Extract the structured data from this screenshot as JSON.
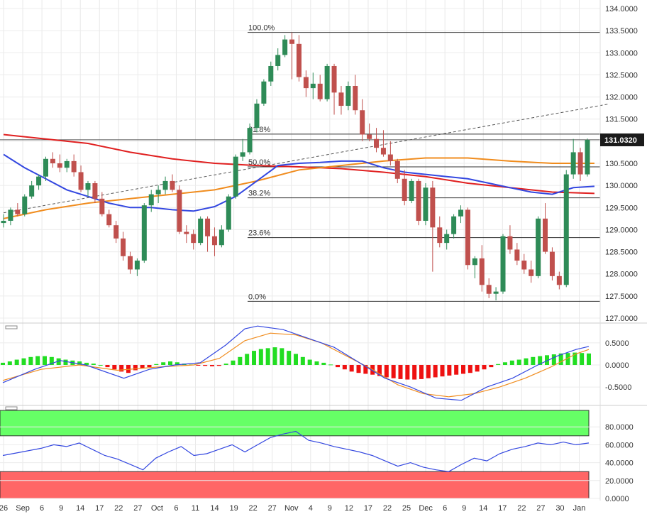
{
  "chart_data": [
    {
      "panel": "price",
      "type": "candlestick",
      "y_ticks": [
        "134.0000",
        "133.5000",
        "133.0000",
        "132.5000",
        "132.0000",
        "131.5000",
        "131.0000",
        "130.5000",
        "130.0000",
        "129.5000",
        "129.0000",
        "128.5000",
        "128.0000",
        "127.5000",
        "127.0000"
      ],
      "ylim": [
        127.0,
        134.0
      ],
      "last_price_label": "131.0320",
      "last_price": 131.032,
      "colors": {
        "up": "#2e8b57",
        "down": "#c0504d",
        "sma_fast": "#3347e0",
        "sma_mid": "#f08c1e",
        "sma_slow": "#e02020",
        "fib": "#333333",
        "tag": "#1b1b1b"
      },
      "fibonacci": [
        {
          "label": "100.0%",
          "value": 133.46
        },
        {
          "label": "61.8%",
          "value": 131.16
        },
        {
          "label": "50.0%",
          "value": 130.42
        },
        {
          "label": "38.2%",
          "value": 129.72
        },
        {
          "label": "23.6%",
          "value": 128.82
        },
        {
          "label": "0.0%",
          "value": 127.38
        }
      ],
      "trendline": [
        {
          "i": 0,
          "v": 129.38
        },
        {
          "i": 84,
          "v": 131.84
        }
      ],
      "candles": [
        [
          129.15,
          129.35,
          129.05,
          129.2
        ],
        [
          129.2,
          129.5,
          129.1,
          129.45
        ],
        [
          129.45,
          129.6,
          129.3,
          129.35
        ],
        [
          129.35,
          129.8,
          129.3,
          129.75
        ],
        [
          129.75,
          130.1,
          129.7,
          130.0
        ],
        [
          130.0,
          130.25,
          129.9,
          130.2
        ],
        [
          130.2,
          130.65,
          130.1,
          130.6
        ],
        [
          130.6,
          130.75,
          130.4,
          130.5
        ],
        [
          130.5,
          130.7,
          130.3,
          130.4
        ],
        [
          130.4,
          130.6,
          130.3,
          130.55
        ],
        [
          130.55,
          130.7,
          130.2,
          130.3
        ],
        [
          130.3,
          130.45,
          129.85,
          129.9
        ],
        [
          129.9,
          130.1,
          129.75,
          130.05
        ],
        [
          130.05,
          130.1,
          129.6,
          129.7
        ],
        [
          129.7,
          129.85,
          129.3,
          129.35
        ],
        [
          129.35,
          129.45,
          129.05,
          129.1
        ],
        [
          129.1,
          129.2,
          128.7,
          128.8
        ],
        [
          128.8,
          128.95,
          128.3,
          128.4
        ],
        [
          128.4,
          128.5,
          128.0,
          128.1
        ],
        [
          128.1,
          128.35,
          127.95,
          128.3
        ],
        [
          128.3,
          129.6,
          128.25,
          129.55
        ],
        [
          129.55,
          129.9,
          129.4,
          129.8
        ],
        [
          129.8,
          130.0,
          129.6,
          129.9
        ],
        [
          129.9,
          130.2,
          129.8,
          130.1
        ],
        [
          130.1,
          130.25,
          129.85,
          129.9
        ],
        [
          129.9,
          130.0,
          128.9,
          128.95
        ],
        [
          128.95,
          129.1,
          128.7,
          128.9
        ],
        [
          128.9,
          129.0,
          128.55,
          128.7
        ],
        [
          128.7,
          129.3,
          128.65,
          129.25
        ],
        [
          129.25,
          129.3,
          128.5,
          128.85
        ],
        [
          128.85,
          129.05,
          128.4,
          128.65
        ],
        [
          128.65,
          129.1,
          128.6,
          129.0
        ],
        [
          129.0,
          129.8,
          128.95,
          129.75
        ],
        [
          129.75,
          130.7,
          129.7,
          130.65
        ],
        [
          130.65,
          131.05,
          130.55,
          130.75
        ],
        [
          130.75,
          131.4,
          130.7,
          131.3
        ],
        [
          131.3,
          131.95,
          131.2,
          131.85
        ],
        [
          131.85,
          132.4,
          131.8,
          132.35
        ],
        [
          132.35,
          132.8,
          132.25,
          132.7
        ],
        [
          132.7,
          133.1,
          132.6,
          132.95
        ],
        [
          132.95,
          133.4,
          132.9,
          133.3
        ],
        [
          133.3,
          133.46,
          132.4,
          133.2
        ],
        [
          133.2,
          133.4,
          132.35,
          132.45
        ],
        [
          132.45,
          132.6,
          132.0,
          132.2
        ],
        [
          132.2,
          132.55,
          131.95,
          132.3
        ],
        [
          132.3,
          132.5,
          131.9,
          131.95
        ],
        [
          131.95,
          132.75,
          131.9,
          132.7
        ],
        [
          132.7,
          132.75,
          131.6,
          132.1
        ],
        [
          132.1,
          132.25,
          131.6,
          131.8
        ],
        [
          131.8,
          132.35,
          131.7,
          132.25
        ],
        [
          132.25,
          132.5,
          131.6,
          131.7
        ],
        [
          131.7,
          131.95,
          131.0,
          131.15
        ],
        [
          131.15,
          131.4,
          131.0,
          131.05
        ],
        [
          131.05,
          131.3,
          130.75,
          130.85
        ],
        [
          130.85,
          131.25,
          130.65,
          130.7
        ],
        [
          130.7,
          131.0,
          130.45,
          130.55
        ],
        [
          130.55,
          130.6,
          130.05,
          130.15
        ],
        [
          130.15,
          130.35,
          129.55,
          129.65
        ],
        [
          129.65,
          130.15,
          129.6,
          130.1
        ],
        [
          130.1,
          130.15,
          129.1,
          129.2
        ],
        [
          129.2,
          130.05,
          129.1,
          129.95
        ],
        [
          129.95,
          130.1,
          128.05,
          129.05
        ],
        [
          129.05,
          129.3,
          128.6,
          128.7
        ],
        [
          128.7,
          129.0,
          128.55,
          128.9
        ],
        [
          128.9,
          129.35,
          128.8,
          129.3
        ],
        [
          129.3,
          129.55,
          129.15,
          129.45
        ],
        [
          129.45,
          129.5,
          128.1,
          128.2
        ],
        [
          128.2,
          128.4,
          127.9,
          128.35
        ],
        [
          128.35,
          128.65,
          127.6,
          127.75
        ],
        [
          127.75,
          127.9,
          127.45,
          127.55
        ],
        [
          127.55,
          127.7,
          127.4,
          127.6
        ],
        [
          127.6,
          128.9,
          127.55,
          128.85
        ],
        [
          128.85,
          129.1,
          128.45,
          128.55
        ],
        [
          128.55,
          128.7,
          128.2,
          128.3
        ],
        [
          128.3,
          128.45,
          128.0,
          128.1
        ],
        [
          128.1,
          128.3,
          127.8,
          127.95
        ],
        [
          127.95,
          129.3,
          127.9,
          129.25
        ],
        [
          129.25,
          129.6,
          128.45,
          128.5
        ],
        [
          128.5,
          128.6,
          127.85,
          127.95
        ],
        [
          127.95,
          128.05,
          127.65,
          127.75
        ],
        [
          127.75,
          130.35,
          127.7,
          130.25
        ],
        [
          130.25,
          131.05,
          130.15,
          130.75
        ],
        [
          130.75,
          130.85,
          130.1,
          130.25
        ],
        [
          130.25,
          131.06,
          130.2,
          131.03
        ]
      ],
      "sma_fast": [
        [
          0,
          130.7
        ],
        [
          3,
          130.4
        ],
        [
          6,
          130.15
        ],
        [
          9,
          129.9
        ],
        [
          12,
          129.75
        ],
        [
          15,
          129.6
        ],
        [
          18,
          129.5
        ],
        [
          21,
          129.5
        ],
        [
          24,
          129.45
        ],
        [
          27,
          129.42
        ],
        [
          30,
          129.52
        ],
        [
          33,
          129.75
        ],
        [
          36,
          130.1
        ],
        [
          39,
          130.45
        ],
        [
          42,
          130.5
        ],
        [
          45,
          130.52
        ],
        [
          48,
          130.55
        ],
        [
          51,
          130.55
        ],
        [
          54,
          130.4
        ],
        [
          57,
          130.3
        ],
        [
          60,
          130.25
        ],
        [
          63,
          130.2
        ],
        [
          66,
          130.15
        ],
        [
          69,
          130.05
        ],
        [
          72,
          129.95
        ],
        [
          75,
          129.85
        ],
        [
          78,
          129.8
        ],
        [
          81,
          129.95
        ],
        [
          84,
          129.98
        ]
      ],
      "sma_mid": [
        [
          0,
          129.25
        ],
        [
          6,
          129.45
        ],
        [
          12,
          129.6
        ],
        [
          18,
          129.7
        ],
        [
          24,
          129.8
        ],
        [
          30,
          129.9
        ],
        [
          36,
          130.1
        ],
        [
          42,
          130.35
        ],
        [
          48,
          130.45
        ],
        [
          54,
          130.55
        ],
        [
          60,
          130.62
        ],
        [
          66,
          130.62
        ],
        [
          72,
          130.55
        ],
        [
          78,
          130.5
        ],
        [
          84,
          130.5
        ]
      ],
      "sma_slow": [
        [
          0,
          131.15
        ],
        [
          6,
          131.05
        ],
        [
          12,
          130.95
        ],
        [
          18,
          130.75
        ],
        [
          24,
          130.6
        ],
        [
          30,
          130.5
        ],
        [
          36,
          130.45
        ],
        [
          42,
          130.42
        ],
        [
          48,
          130.38
        ],
        [
          54,
          130.3
        ],
        [
          60,
          130.2
        ],
        [
          66,
          130.05
        ],
        [
          72,
          129.95
        ],
        [
          78,
          129.85
        ],
        [
          84,
          129.82
        ]
      ]
    },
    {
      "panel": "macd",
      "type": "histogram+line",
      "y_ticks": [
        "0.5000",
        "0.0000",
        "-0.5000"
      ],
      "ylim": [
        -0.9,
        0.9
      ],
      "colors": {
        "pos": "#22dd22",
        "neg": "#ee1111",
        "macd": "#3347e0",
        "signal": "#f08c1e"
      },
      "histogram": [
        0.05,
        0.08,
        0.12,
        0.15,
        0.18,
        0.2,
        0.2,
        0.18,
        0.15,
        0.12,
        0.1,
        0.08,
        0.05,
        0.03,
        0.0,
        -0.05,
        -0.1,
        -0.15,
        -0.18,
        -0.12,
        -0.08,
        -0.05,
        0.02,
        0.06,
        0.08,
        0.06,
        0.03,
        0.01,
        -0.01,
        -0.02,
        -0.03,
        -0.02,
        0.03,
        0.1,
        0.18,
        0.25,
        0.32,
        0.36,
        0.38,
        0.4,
        0.38,
        0.32,
        0.25,
        0.18,
        0.12,
        0.08,
        0.05,
        0.01,
        -0.05,
        -0.1,
        -0.15,
        -0.18,
        -0.2,
        -0.22,
        -0.25,
        -0.28,
        -0.3,
        -0.32,
        -0.33,
        -0.33,
        -0.32,
        -0.3,
        -0.28,
        -0.26,
        -0.24,
        -0.22,
        -0.2,
        -0.18,
        -0.15,
        -0.1,
        -0.05,
        0.02,
        0.06,
        0.1,
        0.12,
        0.15,
        0.18,
        0.2,
        0.22,
        0.24,
        0.26,
        0.27,
        0.28,
        0.27,
        0.26
      ],
      "macd": [
        [
          0,
          -0.4
        ],
        [
          5,
          -0.1
        ],
        [
          9,
          0.1
        ],
        [
          13,
          0.0
        ],
        [
          19,
          -0.3
        ],
        [
          23,
          -0.1
        ],
        [
          27,
          0.0
        ],
        [
          31,
          0.05
        ],
        [
          35,
          0.45
        ],
        [
          38,
          0.82
        ],
        [
          40,
          0.88
        ],
        [
          44,
          0.8
        ],
        [
          48,
          0.6
        ],
        [
          52,
          0.4
        ],
        [
          56,
          0.05
        ],
        [
          60,
          -0.3
        ],
        [
          64,
          -0.5
        ],
        [
          68,
          -0.75
        ],
        [
          72,
          -0.8
        ],
        [
          76,
          -0.5
        ],
        [
          80,
          -0.3
        ],
        [
          84,
          0.0
        ],
        [
          87,
          0.2
        ],
        [
          90,
          0.35
        ],
        [
          92,
          0.42
        ]
      ],
      "signal": [
        [
          0,
          -0.35
        ],
        [
          6,
          -0.1
        ],
        [
          12,
          0.0
        ],
        [
          18,
          -0.12
        ],
        [
          24,
          -0.05
        ],
        [
          30,
          0.0
        ],
        [
          34,
          0.15
        ],
        [
          38,
          0.55
        ],
        [
          42,
          0.72
        ],
        [
          46,
          0.68
        ],
        [
          50,
          0.5
        ],
        [
          54,
          0.2
        ],
        [
          58,
          -0.1
        ],
        [
          62,
          -0.45
        ],
        [
          66,
          -0.65
        ],
        [
          70,
          -0.72
        ],
        [
          74,
          -0.65
        ],
        [
          78,
          -0.5
        ],
        [
          82,
          -0.3
        ],
        [
          86,
          -0.05
        ],
        [
          90,
          0.25
        ],
        [
          92,
          0.35
        ]
      ]
    },
    {
      "panel": "rsi",
      "type": "line",
      "y_ticks": [
        "80.0000",
        "60.0000",
        "40.0000",
        "20.0000",
        "0.0000"
      ],
      "ylim": [
        0,
        100
      ],
      "bands": {
        "upper": [
          70,
          100
        ],
        "lower": [
          0,
          30
        ]
      },
      "colors": {
        "line": "#3347e0",
        "upper": "#66ff66",
        "lower": "#ff6666"
      },
      "values": [
        [
          0,
          48
        ],
        [
          3,
          52
        ],
        [
          6,
          56
        ],
        [
          8,
          60
        ],
        [
          10,
          58
        ],
        [
          12,
          62
        ],
        [
          14,
          55
        ],
        [
          16,
          48
        ],
        [
          18,
          44
        ],
        [
          20,
          38
        ],
        [
          22,
          32
        ],
        [
          24,
          45
        ],
        [
          26,
          52
        ],
        [
          28,
          58
        ],
        [
          30,
          48
        ],
        [
          32,
          50
        ],
        [
          34,
          55
        ],
        [
          36,
          60
        ],
        [
          38,
          52
        ],
        [
          40,
          60
        ],
        [
          42,
          68
        ],
        [
          44,
          72
        ],
        [
          46,
          75
        ],
        [
          48,
          65
        ],
        [
          50,
          62
        ],
        [
          52,
          58
        ],
        [
          54,
          55
        ],
        [
          56,
          52
        ],
        [
          58,
          48
        ],
        [
          60,
          42
        ],
        [
          62,
          36
        ],
        [
          64,
          40
        ],
        [
          66,
          35
        ],
        [
          68,
          32
        ],
        [
          70,
          30
        ],
        [
          72,
          38
        ],
        [
          74,
          45
        ],
        [
          76,
          42
        ],
        [
          78,
          50
        ],
        [
          80,
          55
        ],
        [
          82,
          58
        ],
        [
          84,
          62
        ],
        [
          86,
          60
        ],
        [
          88,
          63
        ],
        [
          90,
          60
        ],
        [
          92,
          62
        ]
      ],
      "x_ticks": [
        "26",
        "Sep",
        "6",
        "9",
        "14",
        "17",
        "22",
        "27",
        "Oct",
        "6",
        "11",
        "14",
        "19",
        "22",
        "27",
        "Nov",
        "4",
        "9",
        "12",
        "17",
        "22",
        "25",
        "Dec",
        "6",
        "9",
        "14",
        "17",
        "22",
        "27",
        "30",
        "Jan"
      ]
    }
  ]
}
